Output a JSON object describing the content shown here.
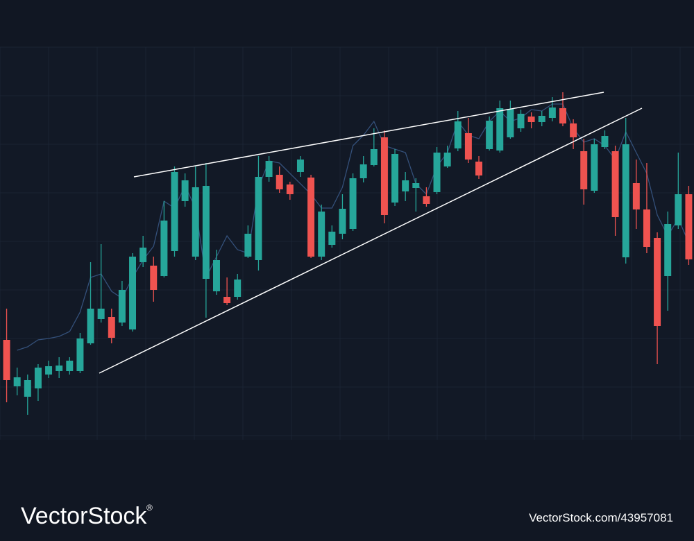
{
  "chart_data": {
    "type": "candlestick",
    "ylim": [
      70,
      630
    ],
    "grid": true,
    "up_color": "#26a69a",
    "down_color": "#ef5350",
    "line_color": "#34507a",
    "open": [
      210,
      143,
      128,
      140,
      160,
      165,
      165,
      165,
      205,
      240,
      243,
      235,
      225,
      322,
      317,
      302,
      338,
      410,
      330,
      298,
      280,
      272,
      272,
      330,
      325,
      445,
      448,
      434,
      452,
      444,
      330,
      347,
      363,
      370,
      443,
      462,
      502,
      408,
      424,
      429,
      417,
      423,
      460,
      486,
      508,
      467,
      485,
      483,
      502,
      515,
      532,
      524,
      530,
      544,
      522,
      482,
      425,
      488,
      482,
      329,
      436,
      398,
      357,
      302,
      375,
      420
    ],
    "high": [
      255,
      170,
      160,
      175,
      180,
      185,
      185,
      220,
      322,
      348,
      255,
      295,
      335,
      360,
      330,
      410,
      460,
      450,
      460,
      465,
      340,
      300,
      305,
      375,
      475,
      475,
      460,
      438,
      475,
      448,
      405,
      375,
      420,
      450,
      475,
      515,
      512,
      485,
      452,
      443,
      430,
      488,
      490,
      540,
      530,
      475,
      532,
      555,
      555,
      542,
      538,
      540,
      560,
      567,
      528,
      500,
      500,
      512,
      490,
      530,
      470,
      465,
      365,
      395,
      480,
      432
    ],
    "low": [
      120,
      130,
      102,
      122,
      155,
      155,
      160,
      162,
      203,
      235,
      205,
      230,
      222,
      315,
      265,
      300,
      330,
      402,
      325,
      242,
      275,
      260,
      268,
      328,
      310,
      438,
      422,
      412,
      445,
      328,
      325,
      343,
      355,
      367,
      437,
      460,
      378,
      403,
      410,
      395,
      402,
      420,
      458,
      482,
      465,
      442,
      483,
      480,
      500,
      510,
      515,
      518,
      525,
      518,
      485,
      405,
      422,
      485,
      360,
      320,
      370,
      335,
      175,
      252,
      370,
      318
    ],
    "close": [
      152,
      156,
      152,
      170,
      172,
      173,
      180,
      212,
      255,
      255,
      213,
      282,
      330,
      343,
      282,
      382,
      452,
      440,
      430,
      432,
      325,
      263,
      297,
      363,
      445,
      468,
      427,
      420,
      470,
      330,
      395,
      366,
      399,
      443,
      463,
      485,
      390,
      478,
      440,
      436,
      406,
      480,
      480,
      525,
      470,
      447,
      526,
      544,
      543,
      536,
      524,
      533,
      545,
      522,
      502,
      427,
      492,
      504,
      387,
      492,
      398,
      344,
      230,
      377,
      420,
      326
    ],
    "line_values": [
      null,
      195,
      200,
      210,
      212,
      215,
      222,
      250,
      300,
      305,
      280,
      270,
      300,
      325,
      345,
      410,
      400,
      432,
      400,
      300,
      330,
      360,
      340,
      335,
      430,
      468,
      465,
      450,
      435,
      420,
      400,
      400,
      430,
      490,
      505,
      525,
      490,
      485,
      480,
      435,
      420,
      460,
      480,
      525,
      505,
      500,
      525,
      540,
      525,
      530,
      542,
      540,
      550,
      550,
      515,
      495,
      500,
      490,
      470,
      510,
      480,
      450,
      390,
      360,
      385,
      350
    ]
  },
  "watermark": {
    "brand": "VectorStock",
    "mark": "®",
    "id": "VectorStock.com/43957081"
  }
}
